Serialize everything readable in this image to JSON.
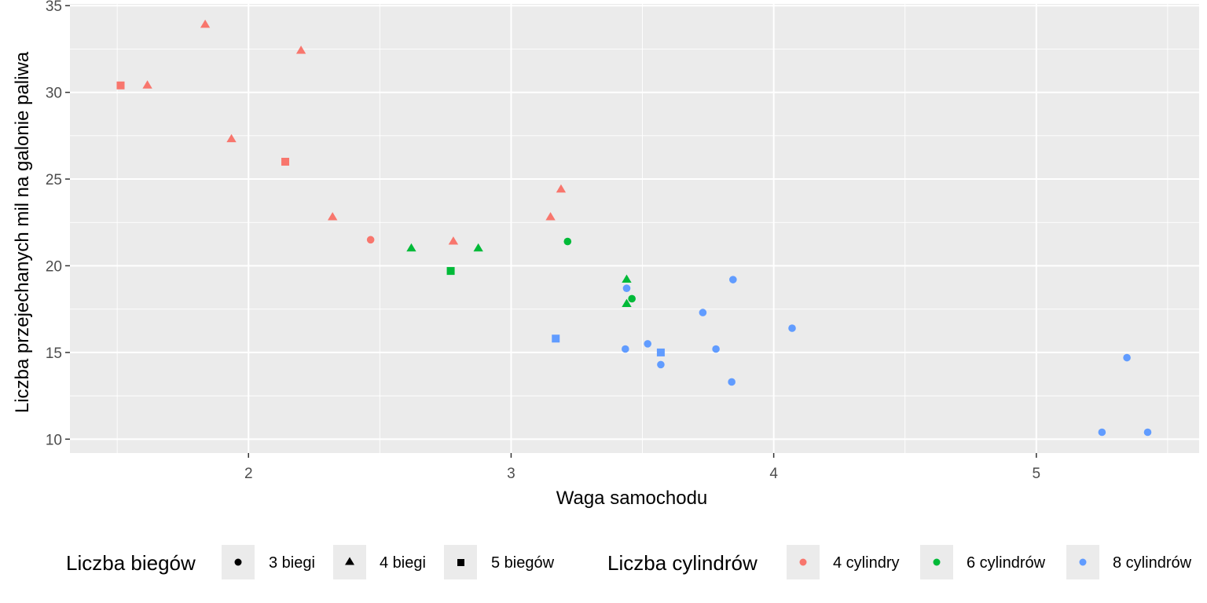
{
  "chart_data": {
    "type": "scatter",
    "xlabel": "Waga samochodu",
    "ylabel": "Liczba przejechanych mil na galonie paliwa",
    "xlim": [
      1.32,
      5.62
    ],
    "ylim": [
      9.2,
      35.1
    ],
    "x_ticks": [
      2,
      3,
      4,
      5
    ],
    "y_ticks": [
      10,
      15,
      20,
      25,
      30,
      35
    ],
    "grid": true,
    "legend_position": "bottom",
    "legend_shape": {
      "title": "Liczba biegów",
      "entries": [
        {
          "label": "3 biegi",
          "shape": "circle"
        },
        {
          "label": "4 biegi",
          "shape": "triangle"
        },
        {
          "label": "5 biegów",
          "shape": "square"
        }
      ]
    },
    "legend_color": {
      "title": "Liczba cylindrów",
      "entries": [
        {
          "label": "4 cylindry",
          "color": "#F8766D"
        },
        {
          "label": "6 cylindrów",
          "color": "#00BA38"
        },
        {
          "label": "8 cylindrów",
          "color": "#619CFF"
        }
      ]
    },
    "points": [
      {
        "x": 2.62,
        "y": 21.0,
        "gear": 4,
        "cyl": 6
      },
      {
        "x": 2.875,
        "y": 21.0,
        "gear": 4,
        "cyl": 6
      },
      {
        "x": 2.32,
        "y": 22.8,
        "gear": 4,
        "cyl": 4
      },
      {
        "x": 3.215,
        "y": 21.4,
        "gear": 3,
        "cyl": 6
      },
      {
        "x": 3.44,
        "y": 18.7,
        "gear": 3,
        "cyl": 8
      },
      {
        "x": 3.46,
        "y": 18.1,
        "gear": 3,
        "cyl": 6
      },
      {
        "x": 3.57,
        "y": 14.3,
        "gear": 3,
        "cyl": 8
      },
      {
        "x": 3.19,
        "y": 24.4,
        "gear": 4,
        "cyl": 4
      },
      {
        "x": 3.15,
        "y": 22.8,
        "gear": 4,
        "cyl": 4
      },
      {
        "x": 3.44,
        "y": 19.2,
        "gear": 4,
        "cyl": 6
      },
      {
        "x": 3.44,
        "y": 17.8,
        "gear": 4,
        "cyl": 6
      },
      {
        "x": 4.07,
        "y": 16.4,
        "gear": 3,
        "cyl": 8
      },
      {
        "x": 3.73,
        "y": 17.3,
        "gear": 3,
        "cyl": 8
      },
      {
        "x": 3.78,
        "y": 15.2,
        "gear": 3,
        "cyl": 8
      },
      {
        "x": 5.25,
        "y": 10.4,
        "gear": 3,
        "cyl": 8
      },
      {
        "x": 5.424,
        "y": 10.4,
        "gear": 3,
        "cyl": 8
      },
      {
        "x": 5.345,
        "y": 14.7,
        "gear": 3,
        "cyl": 8
      },
      {
        "x": 2.2,
        "y": 32.4,
        "gear": 4,
        "cyl": 4
      },
      {
        "x": 1.615,
        "y": 30.4,
        "gear": 4,
        "cyl": 4
      },
      {
        "x": 1.835,
        "y": 33.9,
        "gear": 4,
        "cyl": 4
      },
      {
        "x": 2.465,
        "y": 21.5,
        "gear": 3,
        "cyl": 4
      },
      {
        "x": 3.52,
        "y": 15.5,
        "gear": 3,
        "cyl": 8
      },
      {
        "x": 3.435,
        "y": 15.2,
        "gear": 3,
        "cyl": 8
      },
      {
        "x": 3.84,
        "y": 13.3,
        "gear": 3,
        "cyl": 8
      },
      {
        "x": 3.845,
        "y": 19.2,
        "gear": 3,
        "cyl": 8
      },
      {
        "x": 1.935,
        "y": 27.3,
        "gear": 4,
        "cyl": 4
      },
      {
        "x": 2.14,
        "y": 26.0,
        "gear": 5,
        "cyl": 4
      },
      {
        "x": 1.513,
        "y": 30.4,
        "gear": 5,
        "cyl": 4
      },
      {
        "x": 3.17,
        "y": 15.8,
        "gear": 5,
        "cyl": 8
      },
      {
        "x": 2.77,
        "y": 19.7,
        "gear": 5,
        "cyl": 6
      },
      {
        "x": 3.57,
        "y": 15.0,
        "gear": 5,
        "cyl": 8
      },
      {
        "x": 2.78,
        "y": 21.4,
        "gear": 4,
        "cyl": 4
      }
    ]
  },
  "colors": {
    "panel": "#EBEBEB",
    "grid_major": "#FFFFFF",
    "cyl_4": "#F8766D",
    "cyl_6": "#00BA38",
    "cyl_8": "#619CFF",
    "legend_key_bg": "#EBEBEB"
  }
}
